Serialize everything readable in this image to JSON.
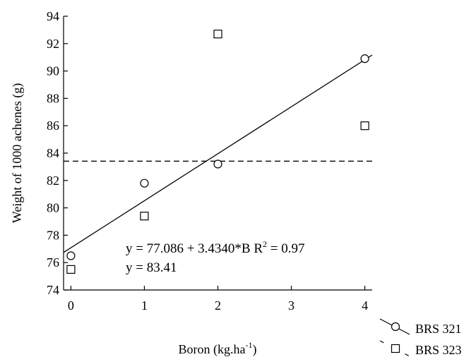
{
  "chart_data": {
    "type": "scatter",
    "xlabel": "Boron (kg.ha",
    "xlabel_sup": "-1",
    "xlabel_close": ")",
    "ylabel": "Weight of 1000 achenes (g)",
    "xlim": [
      -0.1,
      4.1
    ],
    "ylim": [
      74,
      94
    ],
    "x_ticks": [
      0,
      1,
      2,
      3,
      4
    ],
    "y_ticks": [
      74,
      76,
      78,
      80,
      82,
      84,
      86,
      88,
      90,
      92,
      94
    ],
    "grid": false,
    "legend_position": "bottom-right",
    "series": [
      {
        "name": "BRS 321",
        "marker": "circle",
        "x": [
          0,
          1,
          2,
          4
        ],
        "y": [
          76.5,
          81.8,
          83.2,
          90.9
        ],
        "fit": {
          "intercept": 77.086,
          "slope": 3.434,
          "line_style": "solid"
        }
      },
      {
        "name": "BRS 323",
        "marker": "square",
        "x": [
          0,
          1,
          2,
          4
        ],
        "y": [
          75.5,
          79.4,
          92.7,
          86.0
        ],
        "fit": {
          "mean": 83.41,
          "line_style": "dashed"
        }
      }
    ],
    "annotations": {
      "eq1": "y = 77.086 + 3.4340*B  R",
      "eq1_sup": "2",
      "eq1_tail": " = 0.97",
      "eq2": "y = 83.41"
    }
  }
}
